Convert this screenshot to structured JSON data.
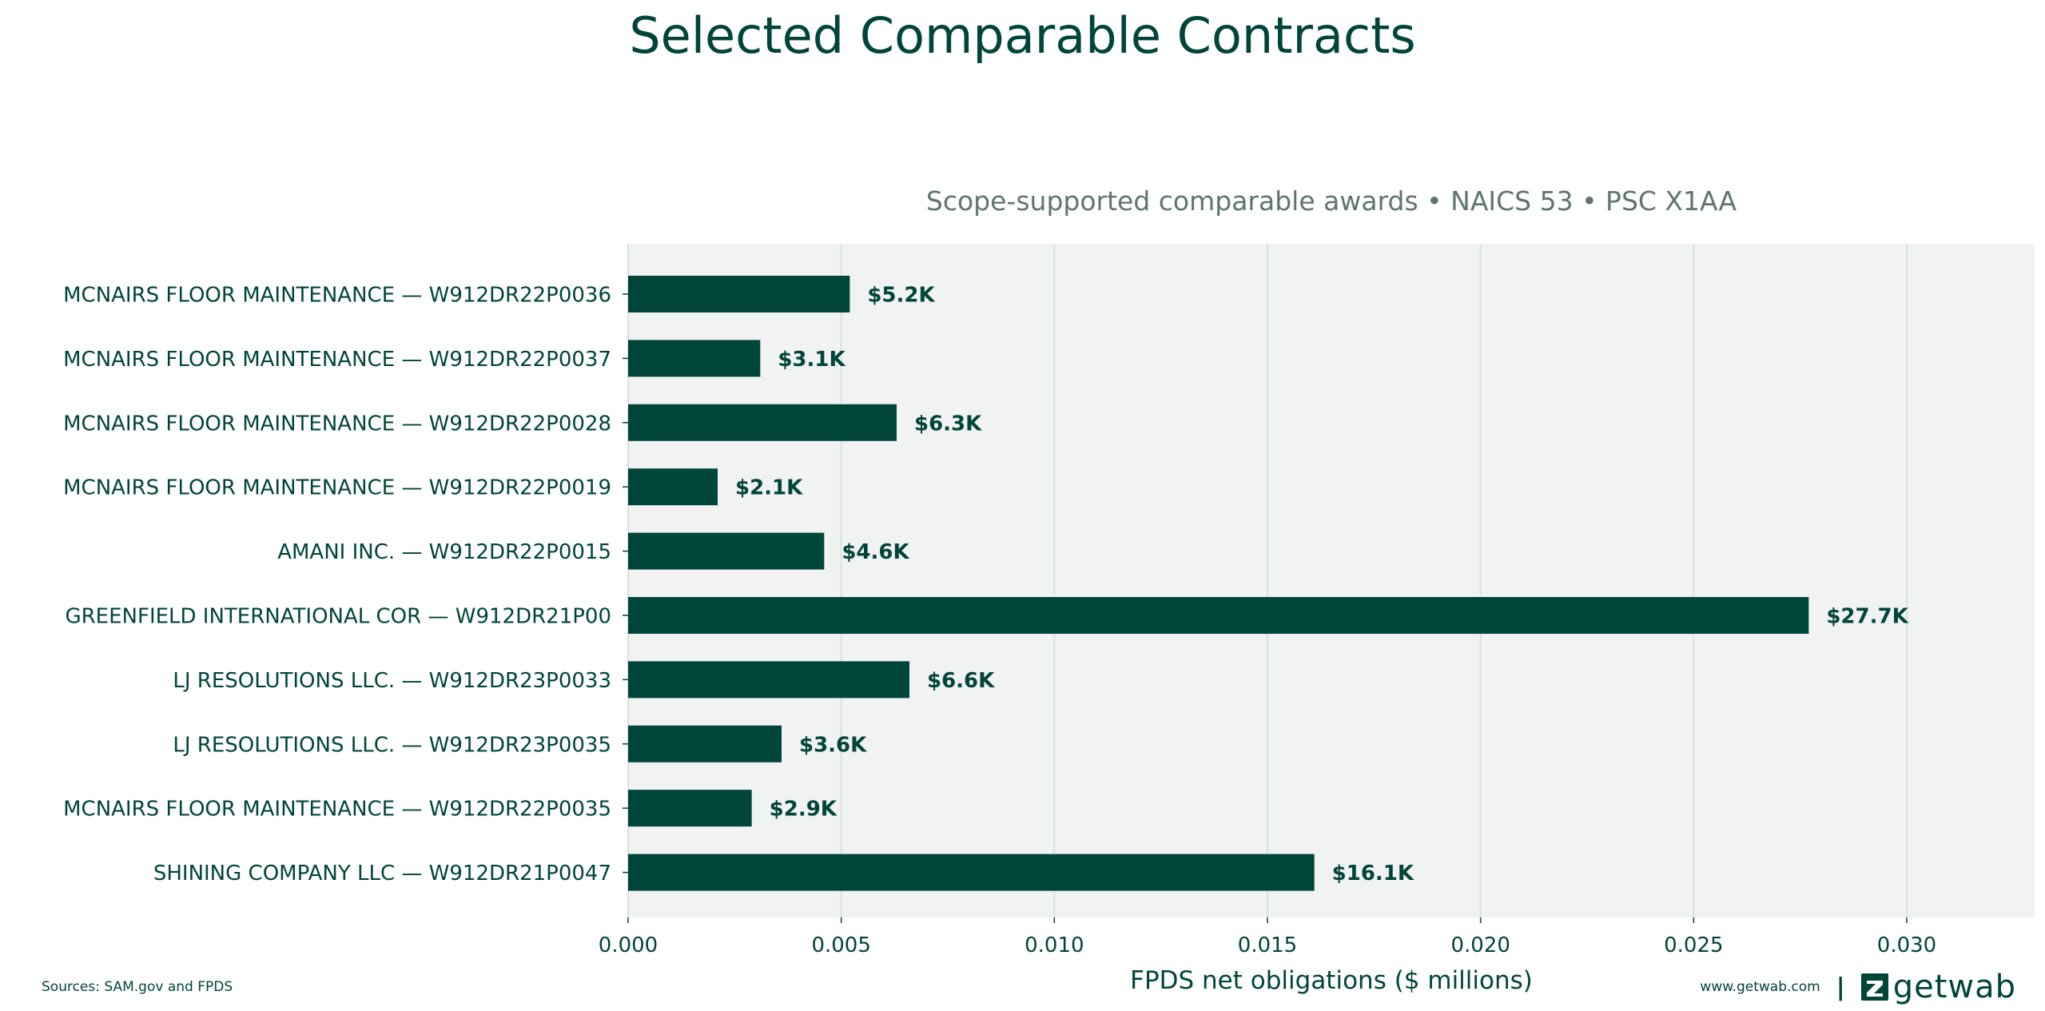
{
  "chart_data": {
    "type": "bar",
    "orientation": "horizontal",
    "title": "Selected Comparable Contracts",
    "subtitle": "Scope-supported comparable awards • NAICS 53 • PSC X1AA",
    "xlabel": "FPDS net obligations ($ millions)",
    "ylabel": "",
    "xlim": [
      0,
      0.033
    ],
    "xticks": [
      {
        "value": 0.0,
        "label": "0.000"
      },
      {
        "value": 0.005,
        "label": "0.005"
      },
      {
        "value": 0.01,
        "label": "0.010"
      },
      {
        "value": 0.015,
        "label": "0.015"
      },
      {
        "value": 0.02,
        "label": "0.020"
      },
      {
        "value": 0.025,
        "label": "0.025"
      },
      {
        "value": 0.03,
        "label": "0.030"
      }
    ],
    "grid": "vertical",
    "categories": [
      "MCNAIRS FLOOR MAINTENANCE — W912DR22P0036",
      "MCNAIRS FLOOR MAINTENANCE — W912DR22P0037",
      "MCNAIRS FLOOR MAINTENANCE — W912DR22P0028",
      "MCNAIRS FLOOR MAINTENANCE — W912DR22P0019",
      "AMANI INC. — W912DR22P0015",
      "GREENFIELD INTERNATIONAL COR — W912DR21P00",
      "LJ RESOLUTIONS LLC. — W912DR23P0033",
      "LJ RESOLUTIONS LLC. — W912DR23P0035",
      "MCNAIRS FLOOR MAINTENANCE — W912DR22P0035",
      "SHINING COMPANY LLC — W912DR21P0047"
    ],
    "values": [
      0.0052,
      0.0031,
      0.0063,
      0.0021,
      0.0046,
      0.0277,
      0.0066,
      0.0036,
      0.0029,
      0.0161
    ],
    "data_labels": [
      "$5.2K",
      "$3.1K",
      "$6.3K",
      "$2.1K",
      "$4.6K",
      "$27.7K",
      "$6.6K",
      "$3.6K",
      "$2.9K",
      "$16.1K"
    ],
    "colors": {
      "bar": "#00453a",
      "plot_background": "#f1f3f2",
      "grid": "#d5e3df",
      "title": "#00453a",
      "subtitle": "#5e7570",
      "text": "#00453a"
    }
  },
  "footer": {
    "sources": "Sources: SAM.gov and FPDS",
    "url": "www.getwab.com",
    "separator": "|",
    "brand_name": "getwab",
    "brand_icon": "getwab-logo-icon"
  }
}
